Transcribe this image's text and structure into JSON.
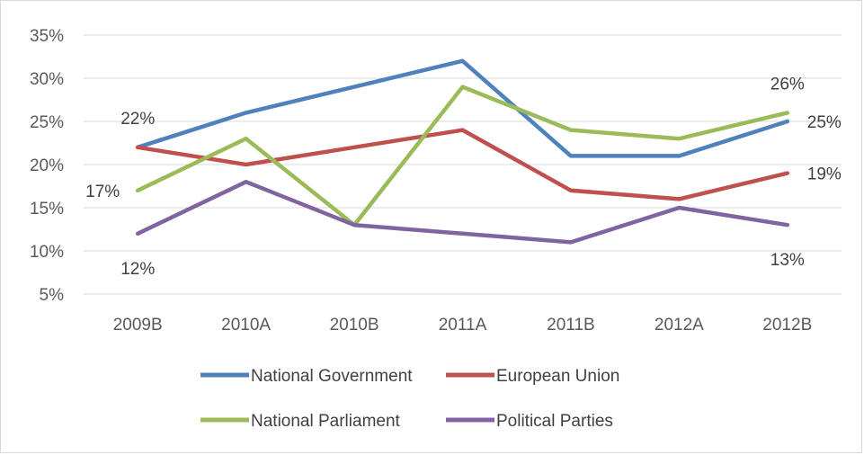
{
  "chart_data": {
    "type": "line",
    "categories": [
      "2009B",
      "2010A",
      "2010B",
      "2011A",
      "2011B",
      "2012A",
      "2012B"
    ],
    "ylim": [
      5,
      35
    ],
    "yticks": [
      "5%",
      "10%",
      "15%",
      "20%",
      "25%",
      "30%",
      "35%"
    ],
    "grid": true,
    "legend_position": "bottom",
    "series": [
      {
        "name": "National Government",
        "color": "#4f81bd",
        "values": [
          22,
          26,
          29,
          32,
          21,
          21,
          25
        ]
      },
      {
        "name": "European Union",
        "color": "#c0504d",
        "values": [
          22,
          20,
          22,
          24,
          17,
          16,
          19
        ]
      },
      {
        "name": "National Parliament",
        "color": "#9bbb59",
        "values": [
          17,
          23,
          13,
          29,
          24,
          23,
          26
        ]
      },
      {
        "name": "Political Parties",
        "color": "#8064a2",
        "values": [
          12,
          18,
          13,
          12,
          11,
          15,
          13
        ]
      }
    ],
    "data_labels": [
      {
        "series": 0,
        "index": 0,
        "text": "22%",
        "placement": "above"
      },
      {
        "series": 2,
        "index": 0,
        "text": "17%",
        "placement": "left"
      },
      {
        "series": 3,
        "index": 0,
        "text": "12%",
        "placement": "below"
      },
      {
        "series": 2,
        "index": 6,
        "text": "26%",
        "placement": "above"
      },
      {
        "series": 0,
        "index": 6,
        "text": "25%",
        "placement": "right"
      },
      {
        "series": 1,
        "index": 6,
        "text": "19%",
        "placement": "right"
      },
      {
        "series": 3,
        "index": 6,
        "text": "13%",
        "placement": "below"
      }
    ]
  }
}
